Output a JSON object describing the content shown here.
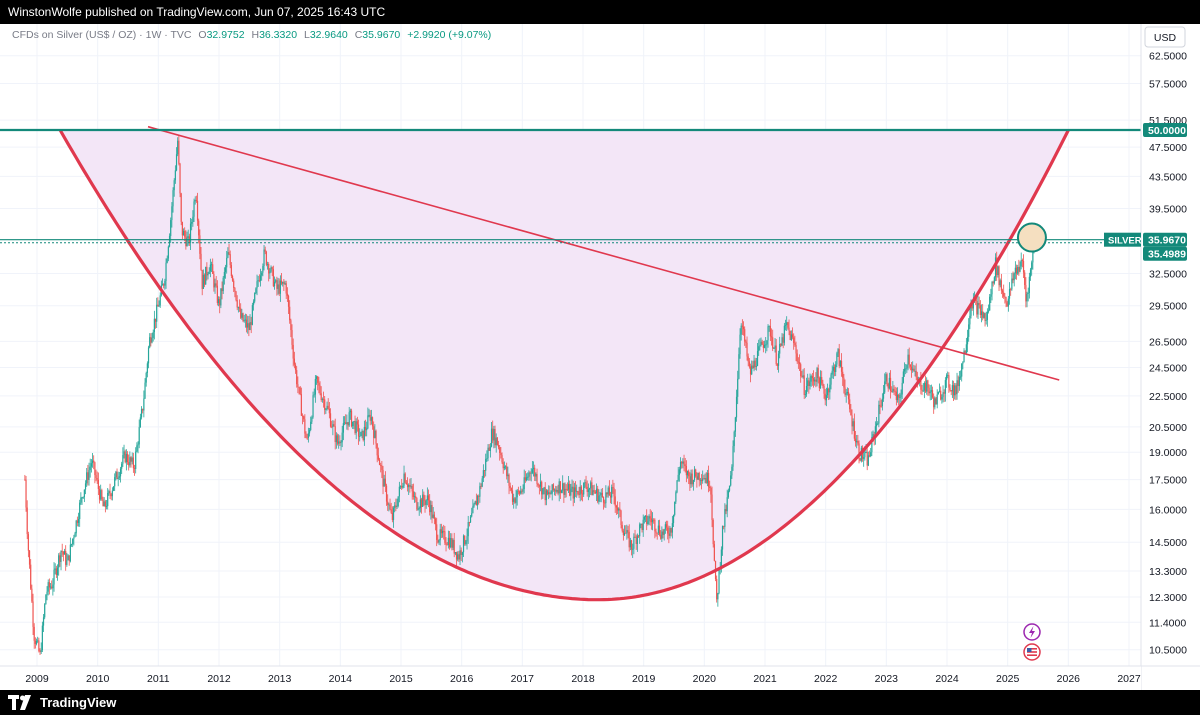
{
  "header": {
    "published": "WinstonWolfe published on TradingView.com, Jun 07, 2025 16:43 UTC"
  },
  "legend": {
    "symbol": "CFDs on Silver (US$ / OZ) · 1W · TVC",
    "o_label": "O",
    "o_value": "32.9752",
    "h_label": "H",
    "h_value": "36.3320",
    "l_label": "L",
    "l_value": "32.9640",
    "c_label": "C",
    "c_value": "35.9670",
    "change": "+2.9920 (+9.07%)"
  },
  "currency_button": "USD",
  "footer": {
    "brand": "TradingView"
  },
  "colors": {
    "up": "#26a69a",
    "down": "#ef5350",
    "curve": "#e0384e",
    "level": "#13897a",
    "fill": "#f3e6f7",
    "circle_fill": "#f5dfc0"
  },
  "icons": [
    "lightning-icon",
    "us-flag-icon"
  ],
  "chart_data": {
    "type": "candlestick",
    "symbol": "SILVER",
    "interval": "1W",
    "y_axis_labels": [
      "62.5000",
      "57.5000",
      "51.5000",
      "47.5000",
      "43.5000",
      "39.5000",
      "32.5000",
      "29.5000",
      "26.5000",
      "24.5000",
      "22.5000",
      "20.5000",
      "19.0000",
      "17.5000",
      "16.0000",
      "14.5000",
      "13.3000",
      "12.3000",
      "11.4000",
      "10.5000"
    ],
    "x_axis_labels": [
      "2009",
      "2010",
      "2011",
      "2012",
      "2013",
      "2014",
      "2015",
      "2016",
      "2017",
      "2018",
      "2019",
      "2020",
      "2021",
      "2022",
      "2023",
      "2024",
      "2025",
      "2026",
      "2027"
    ],
    "price_tags": {
      "resistance": "50.0000",
      "symbol_label": "SILVER",
      "last": "35.9670",
      "prev": "35.4989"
    },
    "levels": [
      50.0,
      35.967
    ],
    "trendline": {
      "from": {
        "date": "2010.83",
        "price": 50.5
      },
      "to": {
        "date": "2025.85",
        "price": 23.6
      }
    },
    "cup": {
      "left": {
        "date": "2009.38",
        "price": 50.0
      },
      "bottom": {
        "date": "2018.25",
        "price": 12.2
      },
      "right": {
        "date": "2026.0",
        "price": 50.0
      }
    },
    "circle": {
      "date": "2025.4",
      "price": 36.2
    },
    "series": [
      {
        "t": 2008.8,
        "v": 17.5
      },
      {
        "t": 2008.85,
        "v": 14.5
      },
      {
        "t": 2008.95,
        "v": 11.0
      },
      {
        "t": 2009.05,
        "v": 10.3
      },
      {
        "t": 2009.15,
        "v": 12.5
      },
      {
        "t": 2009.25,
        "v": 12.8
      },
      {
        "t": 2009.4,
        "v": 14.2
      },
      {
        "t": 2009.5,
        "v": 13.6
      },
      {
        "t": 2009.6,
        "v": 14.8
      },
      {
        "t": 2009.75,
        "v": 16.8
      },
      {
        "t": 2009.9,
        "v": 18.5
      },
      {
        "t": 2010.0,
        "v": 17.2
      },
      {
        "t": 2010.1,
        "v": 16.0
      },
      {
        "t": 2010.3,
        "v": 17.6
      },
      {
        "t": 2010.45,
        "v": 18.8
      },
      {
        "t": 2010.6,
        "v": 18.2
      },
      {
        "t": 2010.75,
        "v": 22.0
      },
      {
        "t": 2010.85,
        "v": 26.5
      },
      {
        "t": 2011.0,
        "v": 29.5
      },
      {
        "t": 2011.1,
        "v": 32.0
      },
      {
        "t": 2011.2,
        "v": 38.0
      },
      {
        "t": 2011.32,
        "v": 48.5
      },
      {
        "t": 2011.38,
        "v": 37.0
      },
      {
        "t": 2011.5,
        "v": 35.5
      },
      {
        "t": 2011.62,
        "v": 42.0
      },
      {
        "t": 2011.72,
        "v": 31.5
      },
      {
        "t": 2011.85,
        "v": 33.5
      },
      {
        "t": 2012.0,
        "v": 29.5
      },
      {
        "t": 2012.15,
        "v": 34.5
      },
      {
        "t": 2012.35,
        "v": 28.5
      },
      {
        "t": 2012.5,
        "v": 27.5
      },
      {
        "t": 2012.65,
        "v": 32.0
      },
      {
        "t": 2012.75,
        "v": 34.5
      },
      {
        "t": 2012.95,
        "v": 31.0
      },
      {
        "t": 2013.1,
        "v": 31.5
      },
      {
        "t": 2013.25,
        "v": 24.5
      },
      {
        "t": 2013.45,
        "v": 19.5
      },
      {
        "t": 2013.6,
        "v": 23.5
      },
      {
        "t": 2013.8,
        "v": 21.5
      },
      {
        "t": 2013.95,
        "v": 19.5
      },
      {
        "t": 2014.15,
        "v": 21.2
      },
      {
        "t": 2014.35,
        "v": 19.8
      },
      {
        "t": 2014.5,
        "v": 21.3
      },
      {
        "t": 2014.7,
        "v": 17.5
      },
      {
        "t": 2014.85,
        "v": 15.5
      },
      {
        "t": 2015.05,
        "v": 17.8
      },
      {
        "t": 2015.25,
        "v": 16.3
      },
      {
        "t": 2015.45,
        "v": 16.5
      },
      {
        "t": 2015.6,
        "v": 14.8
      },
      {
        "t": 2015.8,
        "v": 14.6
      },
      {
        "t": 2015.95,
        "v": 13.9
      },
      {
        "t": 2016.1,
        "v": 15.0
      },
      {
        "t": 2016.3,
        "v": 17.0
      },
      {
        "t": 2016.5,
        "v": 20.2
      },
      {
        "t": 2016.6,
        "v": 19.5
      },
      {
        "t": 2016.85,
        "v": 16.5
      },
      {
        "t": 2017.0,
        "v": 17.0
      },
      {
        "t": 2017.15,
        "v": 18.2
      },
      {
        "t": 2017.4,
        "v": 16.6
      },
      {
        "t": 2017.6,
        "v": 17.2
      },
      {
        "t": 2017.85,
        "v": 16.8
      },
      {
        "t": 2018.05,
        "v": 17.2
      },
      {
        "t": 2018.3,
        "v": 16.6
      },
      {
        "t": 2018.5,
        "v": 16.8
      },
      {
        "t": 2018.65,
        "v": 15.2
      },
      {
        "t": 2018.8,
        "v": 14.3
      },
      {
        "t": 2018.95,
        "v": 15.2
      },
      {
        "t": 2019.1,
        "v": 15.6
      },
      {
        "t": 2019.3,
        "v": 14.9
      },
      {
        "t": 2019.45,
        "v": 15.1
      },
      {
        "t": 2019.6,
        "v": 18.5
      },
      {
        "t": 2019.75,
        "v": 17.6
      },
      {
        "t": 2019.95,
        "v": 17.8
      },
      {
        "t": 2020.1,
        "v": 17.4
      },
      {
        "t": 2020.2,
        "v": 12.0
      },
      {
        "t": 2020.3,
        "v": 15.0
      },
      {
        "t": 2020.45,
        "v": 17.8
      },
      {
        "t": 2020.55,
        "v": 24.0
      },
      {
        "t": 2020.6,
        "v": 28.5
      },
      {
        "t": 2020.75,
        "v": 24.0
      },
      {
        "t": 2020.95,
        "v": 26.2
      },
      {
        "t": 2021.08,
        "v": 27.5
      },
      {
        "t": 2021.2,
        "v": 25.0
      },
      {
        "t": 2021.35,
        "v": 27.8
      },
      {
        "t": 2021.5,
        "v": 26.0
      },
      {
        "t": 2021.65,
        "v": 23.0
      },
      {
        "t": 2021.85,
        "v": 24.0
      },
      {
        "t": 2022.0,
        "v": 22.5
      },
      {
        "t": 2022.2,
        "v": 25.5
      },
      {
        "t": 2022.4,
        "v": 21.5
      },
      {
        "t": 2022.55,
        "v": 19.0
      },
      {
        "t": 2022.7,
        "v": 18.5
      },
      {
        "t": 2022.85,
        "v": 21.0
      },
      {
        "t": 2023.0,
        "v": 23.8
      },
      {
        "t": 2023.2,
        "v": 22.0
      },
      {
        "t": 2023.35,
        "v": 25.5
      },
      {
        "t": 2023.5,
        "v": 23.5
      },
      {
        "t": 2023.7,
        "v": 23.0
      },
      {
        "t": 2023.8,
        "v": 22.0
      },
      {
        "t": 2024.0,
        "v": 23.5
      },
      {
        "t": 2024.15,
        "v": 22.8
      },
      {
        "t": 2024.3,
        "v": 26.0
      },
      {
        "t": 2024.4,
        "v": 30.0
      },
      {
        "t": 2024.55,
        "v": 29.0
      },
      {
        "t": 2024.65,
        "v": 28.2
      },
      {
        "t": 2024.8,
        "v": 33.5
      },
      {
        "t": 2024.9,
        "v": 31.0
      },
      {
        "t": 2025.0,
        "v": 29.8
      },
      {
        "t": 2025.12,
        "v": 32.8
      },
      {
        "t": 2025.25,
        "v": 33.5
      },
      {
        "t": 2025.3,
        "v": 30.0
      },
      {
        "t": 2025.38,
        "v": 32.8
      },
      {
        "t": 2025.44,
        "v": 35.97
      }
    ]
  }
}
